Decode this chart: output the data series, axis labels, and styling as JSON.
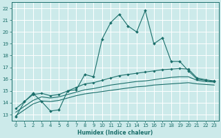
{
  "title": "",
  "xlabel": "Humidex (Indice chaleur)",
  "bg_color": "#cceaea",
  "grid_color": "#ffffff",
  "line_color": "#1a6e6a",
  "xlim": [
    -0.5,
    23.5
  ],
  "ylim": [
    12.5,
    22.5
  ],
  "xticks": [
    0,
    1,
    2,
    3,
    4,
    5,
    6,
    7,
    8,
    9,
    10,
    11,
    12,
    13,
    14,
    15,
    16,
    17,
    18,
    19,
    20,
    21,
    22,
    23
  ],
  "yticks": [
    13,
    14,
    15,
    16,
    17,
    18,
    19,
    20,
    21,
    22
  ],
  "line1_x": [
    0,
    1,
    2,
    3,
    4,
    5,
    6,
    7,
    8,
    9,
    10,
    11,
    12,
    13,
    14,
    15,
    16,
    17,
    18,
    19,
    20,
    21,
    22,
    23
  ],
  "line1_y": [
    12.8,
    14.1,
    14.8,
    14.1,
    13.3,
    13.4,
    15.0,
    15.1,
    16.4,
    16.2,
    19.4,
    20.8,
    21.5,
    20.5,
    20.0,
    21.8,
    19.0,
    19.5,
    17.5,
    17.5,
    16.7,
    16.0,
    15.9,
    15.8
  ],
  "line2_x": [
    0,
    1,
    2,
    3,
    4,
    5,
    6,
    7,
    8,
    9,
    10,
    11,
    12,
    13,
    14,
    15,
    16,
    17,
    18,
    19,
    20,
    21,
    22,
    23
  ],
  "line2_y": [
    13.5,
    14.1,
    14.7,
    14.8,
    14.6,
    14.7,
    15.0,
    15.3,
    15.6,
    15.7,
    15.9,
    16.1,
    16.3,
    16.4,
    16.5,
    16.6,
    16.7,
    16.8,
    16.85,
    16.9,
    16.85,
    16.1,
    15.95,
    15.85
  ],
  "line3_x": [
    0,
    1,
    2,
    3,
    4,
    5,
    6,
    7,
    8,
    9,
    10,
    11,
    12,
    13,
    14,
    15,
    16,
    17,
    18,
    19,
    20,
    21,
    22,
    23
  ],
  "line3_y": [
    13.2,
    13.7,
    14.2,
    14.5,
    14.4,
    14.5,
    14.7,
    14.9,
    15.1,
    15.2,
    15.35,
    15.5,
    15.6,
    15.7,
    15.8,
    15.85,
    15.95,
    16.05,
    16.15,
    16.2,
    16.2,
    15.9,
    15.8,
    15.75
  ],
  "line4_x": [
    0,
    1,
    2,
    3,
    4,
    5,
    6,
    7,
    8,
    9,
    10,
    11,
    12,
    13,
    14,
    15,
    16,
    17,
    18,
    19,
    20,
    21,
    22,
    23
  ],
  "line4_y": [
    12.9,
    13.4,
    13.9,
    14.15,
    14.1,
    14.2,
    14.4,
    14.6,
    14.75,
    14.85,
    14.95,
    15.05,
    15.15,
    15.25,
    15.35,
    15.4,
    15.5,
    15.55,
    15.6,
    15.65,
    15.7,
    15.6,
    15.55,
    15.5
  ]
}
